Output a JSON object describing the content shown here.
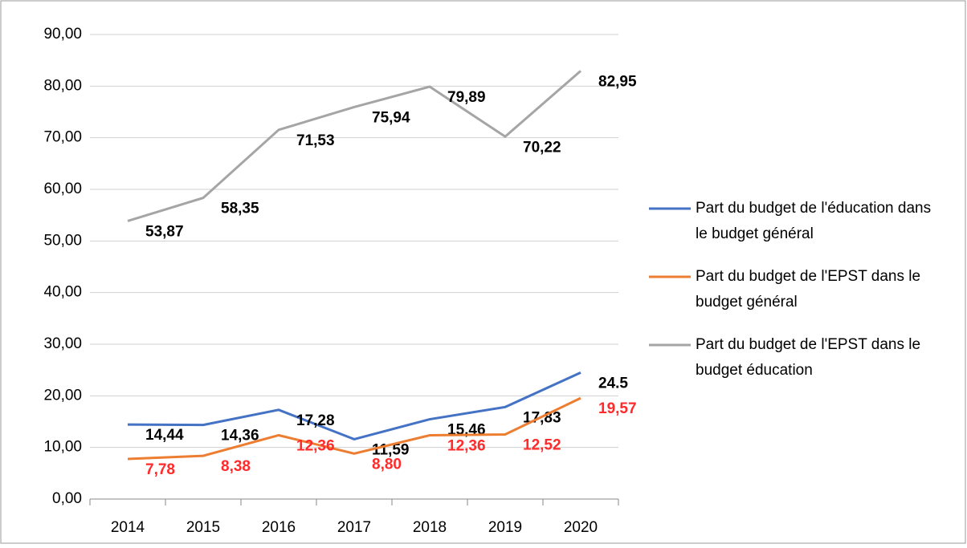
{
  "chart_data": {
    "type": "line",
    "categories": [
      "2014",
      "2015",
      "2016",
      "2017",
      "2018",
      "2019",
      "2020"
    ],
    "series": [
      {
        "name": "Part du budget de l'éducation dans le budget général",
        "color": "#4472c4",
        "label_color": "#000000",
        "values": [
          14.44,
          14.36,
          17.28,
          11.59,
          15.46,
          17.83,
          24.5
        ],
        "value_labels": [
          "14,44",
          "14,36",
          "17,28",
          "11,59",
          "15,46",
          "17,83",
          "24.5"
        ]
      },
      {
        "name": "Part du budget de l'EPST dans le budget général",
        "color": "#ed7d31",
        "label_color": "#ff2a2a",
        "values": [
          7.78,
          8.38,
          12.36,
          8.8,
          12.36,
          12.52,
          19.57
        ],
        "value_labels": [
          "7,78",
          "8,38",
          "12,36",
          "8,80",
          "12,36",
          "12,52",
          "19,57"
        ]
      },
      {
        "name": "Part du budget de l'EPST dans le budget éducation",
        "color": "#a5a5a5",
        "label_color": "#000000",
        "values": [
          53.87,
          58.35,
          71.53,
          75.94,
          79.89,
          70.22,
          82.95
        ],
        "value_labels": [
          "53,87",
          "58,35",
          "71,53",
          "75,94",
          "79,89",
          "70,22",
          "82,95"
        ]
      }
    ],
    "ylim": [
      0,
      90
    ],
    "yticks": [
      {
        "value": 0,
        "label": "0,00"
      },
      {
        "value": 10,
        "label": "10,00"
      },
      {
        "value": 20,
        "label": "20,00"
      },
      {
        "value": 30,
        "label": "30,00"
      },
      {
        "value": 40,
        "label": "40,00"
      },
      {
        "value": 50,
        "label": "50,00"
      },
      {
        "value": 60,
        "label": "60,00"
      },
      {
        "value": 70,
        "label": "70,00"
      },
      {
        "value": 80,
        "label": "80,00"
      },
      {
        "value": 90,
        "label": "90,00"
      }
    ],
    "grid": true,
    "legend": "right"
  }
}
